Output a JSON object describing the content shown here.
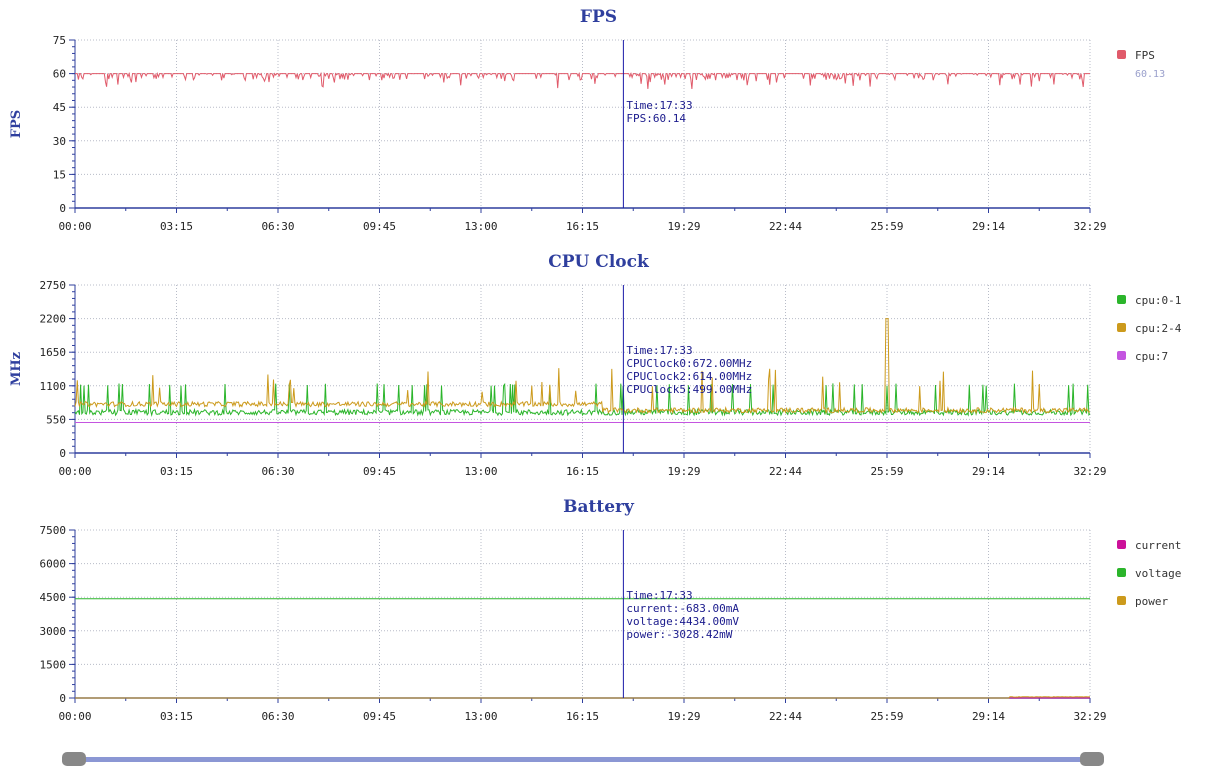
{
  "x_ticks": [
    "00:00",
    "03:15",
    "06:30",
    "09:45",
    "13:00",
    "16:15",
    "19:29",
    "22:44",
    "25:59",
    "29:14",
    "32:29"
  ],
  "cursor_time": "17:33",
  "colors": {
    "fps": "#e05a6a",
    "cpu01": "#2bb52b",
    "cpu24": "#cc9a1c",
    "cpu7": "#c455e0",
    "current": "#cc1199",
    "voltage": "#2bb52b",
    "power": "#cc9a1c",
    "axis": "#2f3f9e",
    "cursor": "#1a1aa8"
  },
  "chart_data": [
    {
      "type": "line",
      "title": "FPS",
      "ylabel": "FPS",
      "ylim": [
        0,
        75
      ],
      "y_ticks": [
        0,
        15,
        30,
        45,
        60,
        75
      ],
      "grid": true,
      "legend_placement": "right",
      "series": [
        {
          "name": "FPS",
          "color": "#e05a6a",
          "legend_value": "60.13",
          "baseline": 60,
          "approx": "steady ~60 with frequent small dips to 54-58"
        }
      ],
      "tooltip": [
        "Time:17:33",
        "FPS:60.14"
      ]
    },
    {
      "type": "line",
      "title": "CPU Clock",
      "ylabel": "MHz",
      "ylim": [
        0,
        2750
      ],
      "y_ticks": [
        0,
        550,
        1100,
        1650,
        2200,
        2750
      ],
      "grid": true,
      "legend_placement": "right",
      "series": [
        {
          "name": "cpu:0-1",
          "color": "#2bb52b",
          "baseline": 672,
          "approx": "~600-700 with spikes to ~1100"
        },
        {
          "name": "cpu:2-4",
          "color": "#cc9a1c",
          "baseline": 800,
          "approx": "~800 early, ~700 late, spikes up to ~2200 near 25:59"
        },
        {
          "name": "cpu:7",
          "color": "#c455e0",
          "baseline": 499,
          "approx": "flat ~499"
        }
      ],
      "tooltip": [
        "Time:17:33",
        "CPUClock0:672.00MHz",
        "CPUClock2:614.00MHz",
        "CPUClock5:499.00MHz"
      ]
    },
    {
      "type": "line",
      "title": "Battery",
      "ylabel": "",
      "ylim": [
        0,
        7500
      ],
      "y_ticks": [
        0,
        1500,
        3000,
        4500,
        6000,
        7500
      ],
      "grid": true,
      "legend_placement": "right",
      "series": [
        {
          "name": "current",
          "color": "#cc1199",
          "baseline": 0,
          "approx": "near 0 (negative, clipped)"
        },
        {
          "name": "voltage",
          "color": "#2bb52b",
          "baseline": 4434,
          "approx": "flat ~4434"
        },
        {
          "name": "power",
          "color": "#cc9a1c",
          "baseline": 0,
          "approx": "near 0, slight rise after ~30:00"
        }
      ],
      "tooltip": [
        "Time:17:33",
        "current:-683.00mA",
        "voltage:4434.00mV",
        "power:-3028.42mW"
      ]
    }
  ]
}
